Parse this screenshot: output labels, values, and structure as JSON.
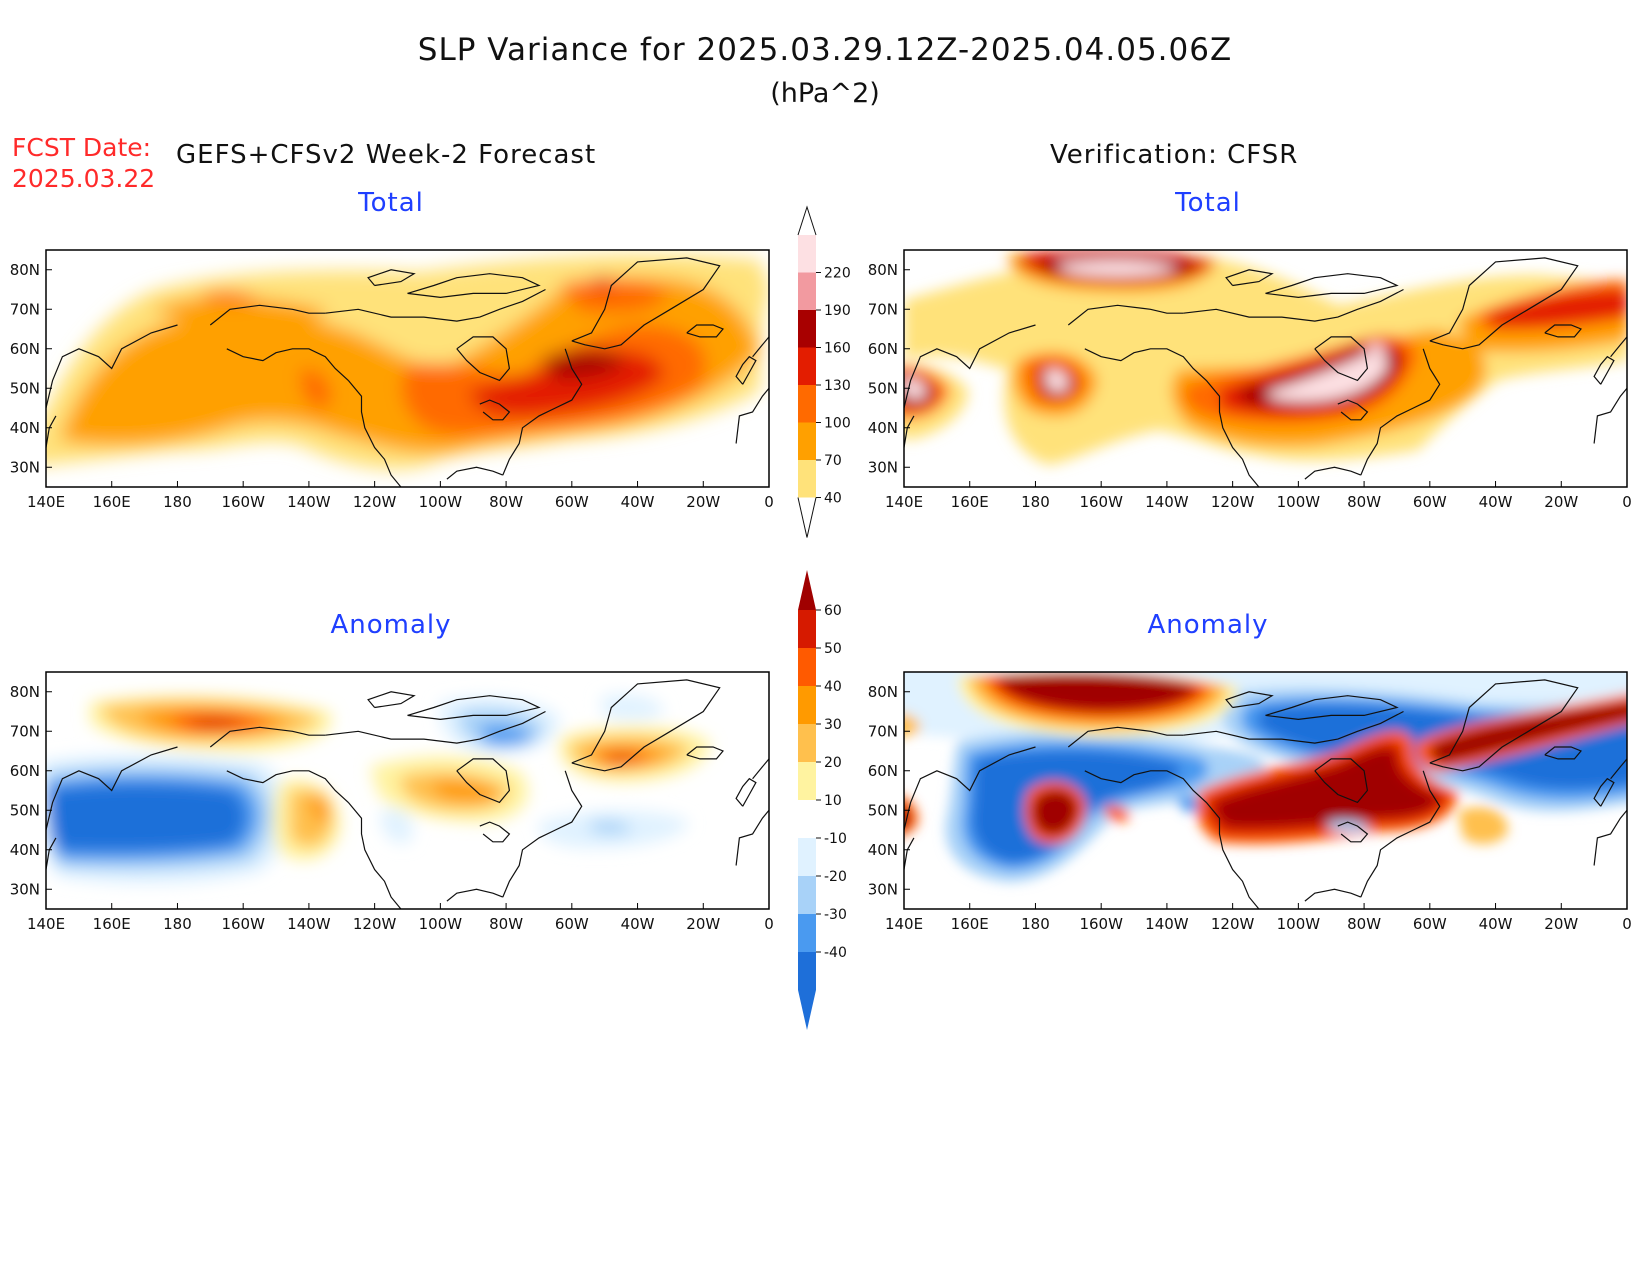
{
  "header": {
    "title": "SLP Variance for 2025.03.29.12Z-2025.04.05.06Z",
    "units": "(hPa^2)",
    "fcst_label": "FCST Date:",
    "fcst_date": "2025.03.22",
    "left_heading": "GEFS+CFSv2 Week-2 Forecast",
    "right_heading": "Verification: CFSR"
  },
  "panels": [
    {
      "id": "fcst-total",
      "title": "Total",
      "kind": "total"
    },
    {
      "id": "verif-total",
      "title": "Total",
      "kind": "total"
    },
    {
      "id": "fcst-anomaly",
      "title": "Anomaly",
      "kind": "anomaly"
    },
    {
      "id": "verif-anomaly",
      "title": "Anomaly",
      "kind": "anomaly"
    }
  ],
  "axes": {
    "lon_labels": [
      "140E",
      "160E",
      "180",
      "160W",
      "140W",
      "120W",
      "100W",
      "80W",
      "60W",
      "40W",
      "20W",
      "0"
    ],
    "lat_labels": [
      "80N",
      "70N",
      "60N",
      "50N",
      "40N",
      "30N"
    ],
    "lon_range_deg_east": [
      140,
      360
    ],
    "lat_range": [
      25,
      85
    ]
  },
  "colorbars": {
    "total": {
      "labels": [
        "40",
        "70",
        "100",
        "130",
        "160",
        "190",
        "220"
      ],
      "colors": [
        "#ffe27a",
        "#ffa000",
        "#ff6a00",
        "#e31d00",
        "#a80000",
        "#f29aa0",
        "#fde0e3"
      ]
    },
    "anomaly": {
      "labels": [
        "-40",
        "-30",
        "-20",
        "-10",
        "10",
        "20",
        "30",
        "40",
        "50",
        "60"
      ],
      "colors": [
        "#1e6fd9",
        "#1e6fd9",
        "#4a9af0",
        "#a8d2f8",
        "#e0f2ff",
        "#ffffff",
        "#fff3a0",
        "#ffc04d",
        "#ff9a00",
        "#ff5a00",
        "#d61a00",
        "#a00000"
      ]
    }
  }
}
